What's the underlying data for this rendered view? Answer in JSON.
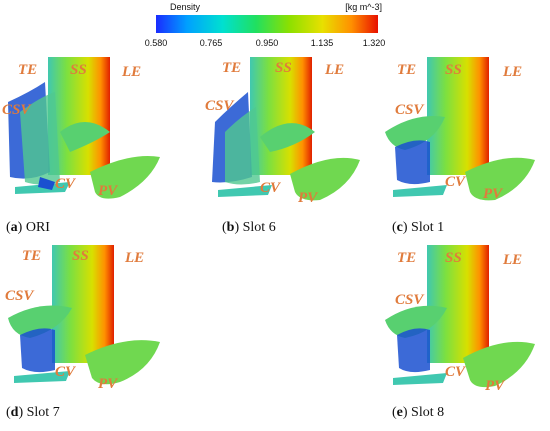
{
  "colorbar": {
    "title": "Density",
    "unit": "[kg m^-3]",
    "ticks": [
      "0.580",
      "0.765",
      "0.950",
      "1.135",
      "1.320"
    ],
    "colors": [
      "#1a2cff",
      "#00a0ff",
      "#00e0d0",
      "#20e060",
      "#8ce000",
      "#e8e000",
      "#ff9000",
      "#e81000"
    ]
  },
  "panels": [
    {
      "id": "a",
      "name": "ORI",
      "labels": {
        "te": "TE",
        "ss": "SS",
        "le": "LE",
        "csv": "CSV",
        "cv": "CV",
        "pv": "PV"
      }
    },
    {
      "id": "b",
      "name": "Slot 6",
      "labels": {
        "te": "TE",
        "ss": "SS",
        "le": "LE",
        "csv": "CSV",
        "cv": "CV",
        "pv": "PV"
      }
    },
    {
      "id": "c",
      "name": "Slot 1",
      "labels": {
        "te": "TE",
        "ss": "SS",
        "le": "LE",
        "csv": "CSV",
        "cv": "CV",
        "pv": "PV"
      }
    },
    {
      "id": "d",
      "name": "Slot 7",
      "labels": {
        "te": "TE",
        "ss": "SS",
        "le": "LE",
        "csv": "CSV",
        "cv": "CV",
        "pv": "PV"
      }
    },
    {
      "id": "e",
      "name": "Slot 8",
      "labels": {
        "te": "TE",
        "ss": "SS",
        "le": "LE",
        "csv": "CSV",
        "cv": "CV",
        "pv": "PV"
      }
    }
  ],
  "captions": {
    "a": {
      "letter": "a",
      "open": "(",
      "close": ") ORI"
    },
    "b": {
      "letter": "b",
      "open": "(",
      "close": ") Slot 6"
    },
    "c": {
      "letter": "c",
      "open": "(",
      "close": ") Slot 1"
    },
    "d": {
      "letter": "d",
      "open": "(",
      "close": ") Slot 7"
    },
    "e": {
      "letter": "e",
      "open": "(",
      "close": ") Slot 8"
    }
  }
}
